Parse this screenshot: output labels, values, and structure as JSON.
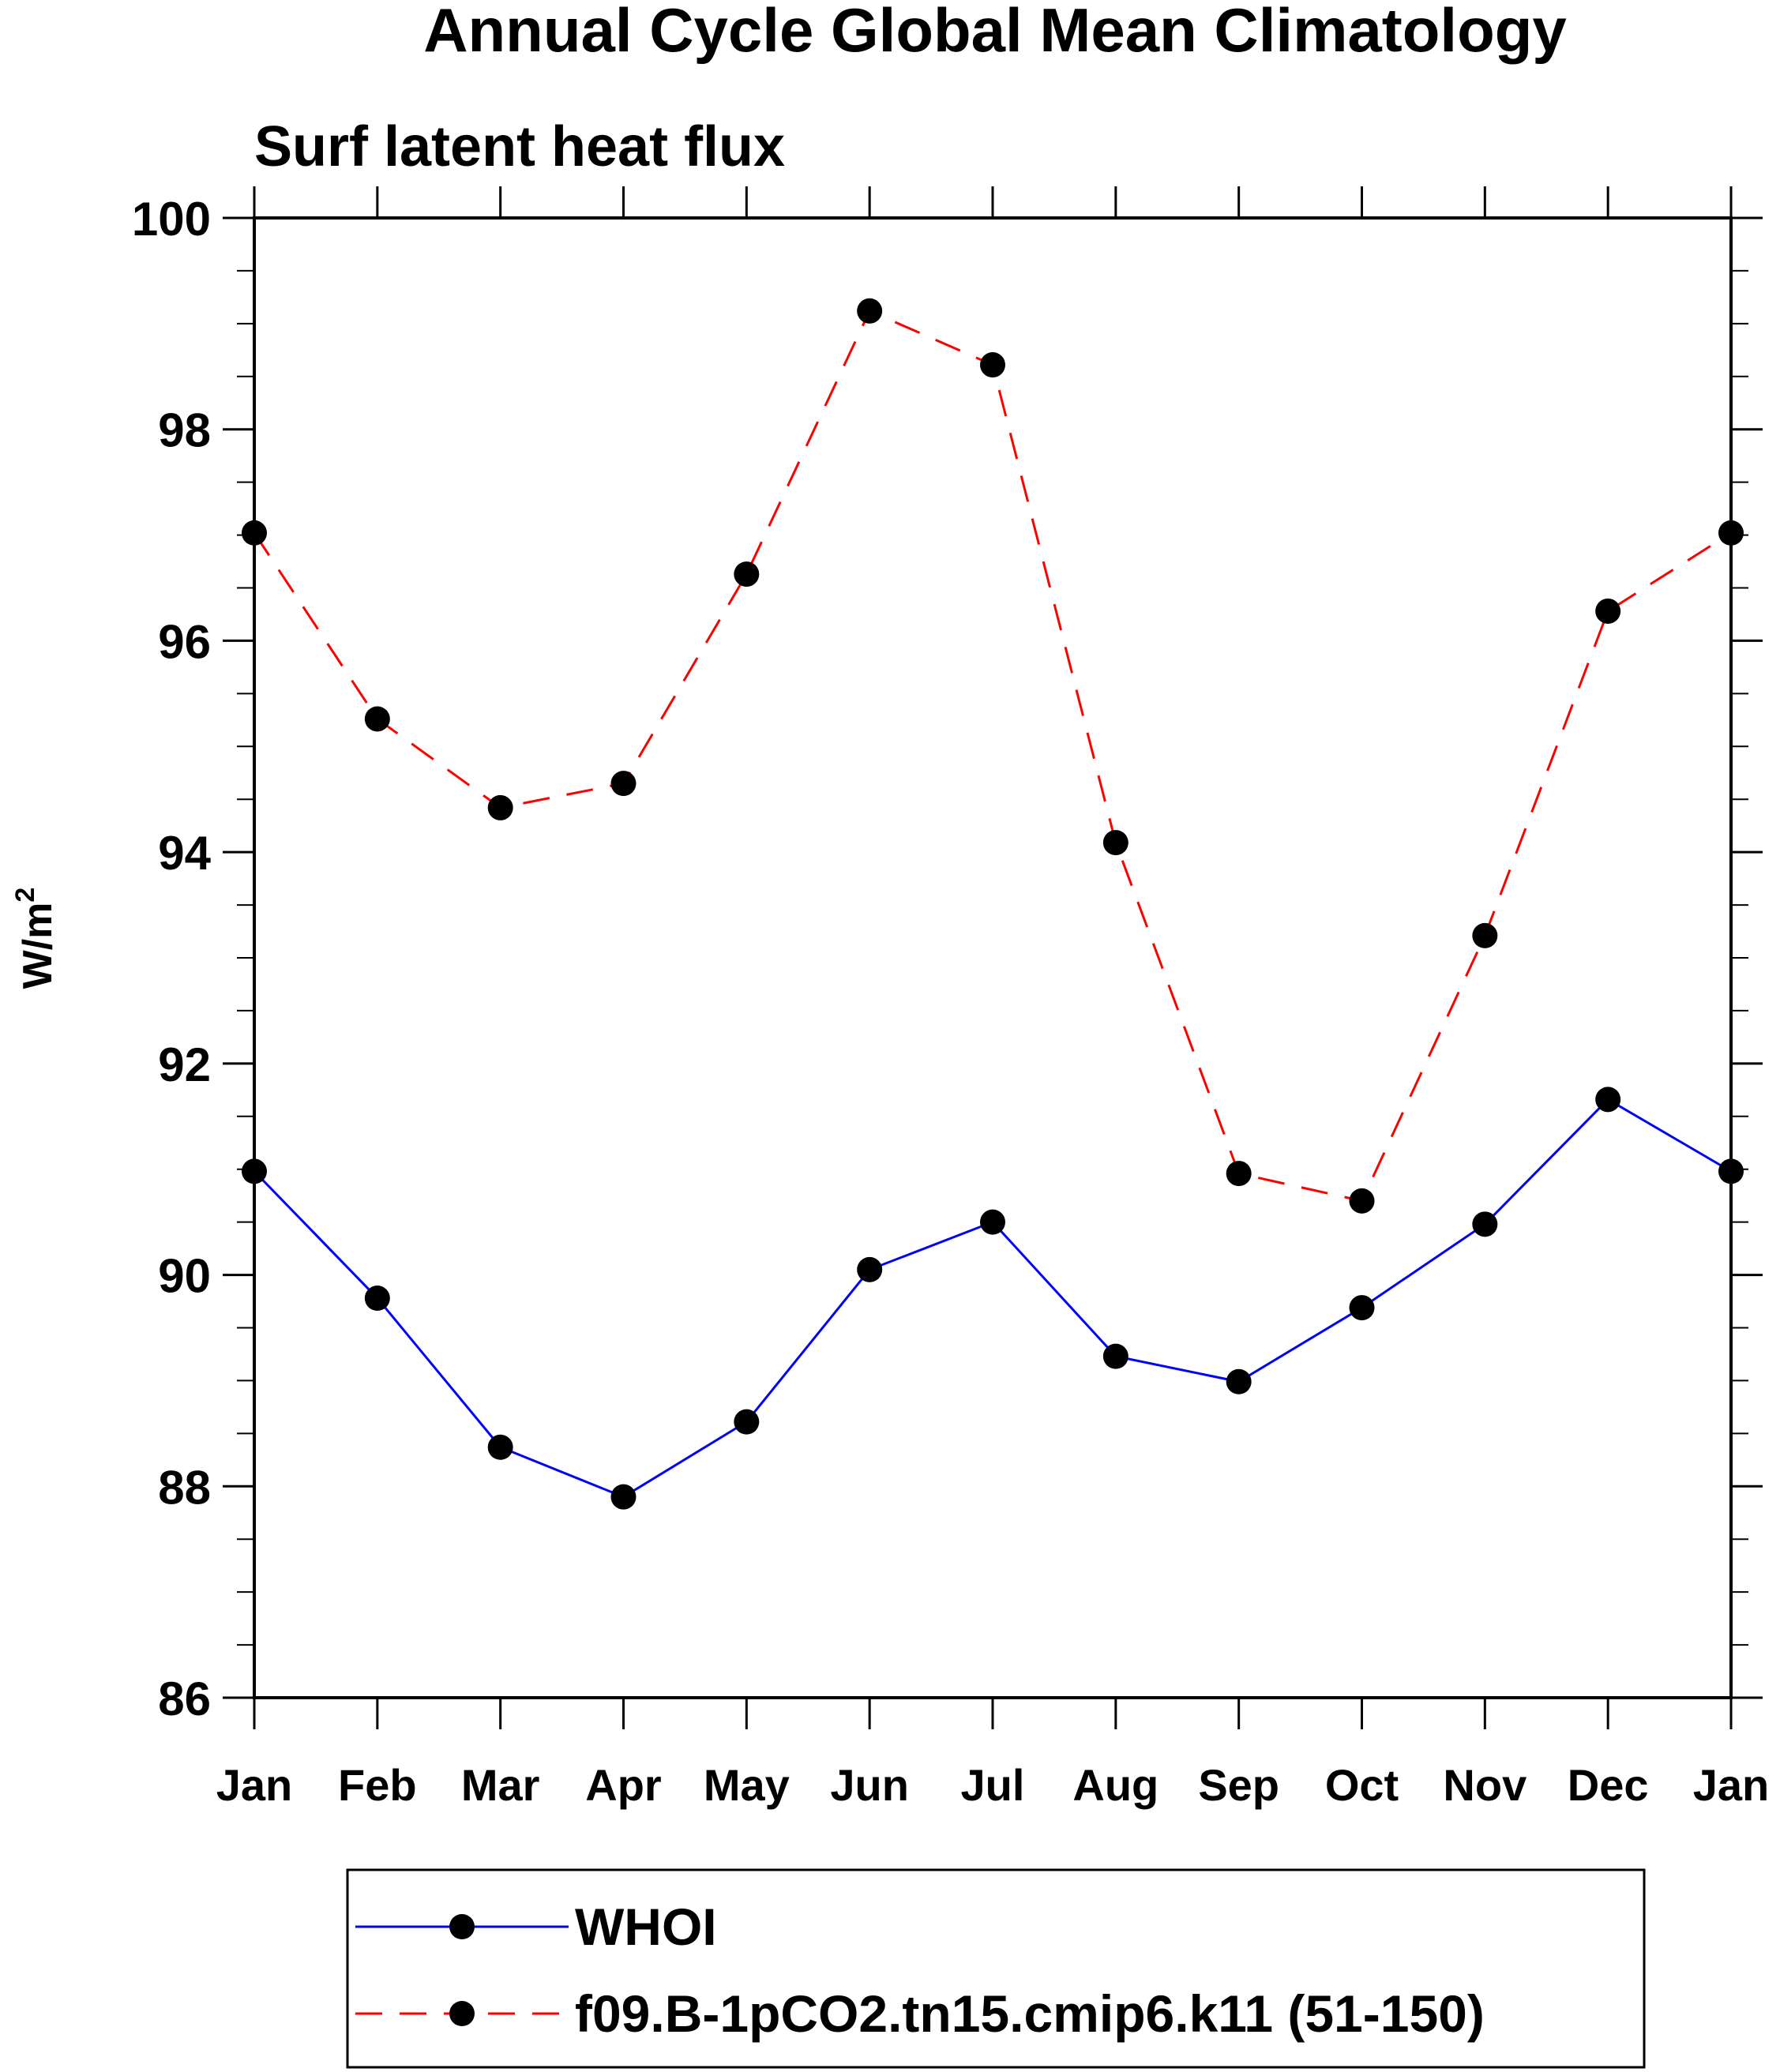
{
  "chart_data": {
    "type": "line",
    "title": "Annual Cycle Global Mean Climatology",
    "subtitle": "Surf latent heat flux",
    "ylabel_base": "W/m",
    "ylabel_sup": "2",
    "xlabel": "",
    "categories": [
      "Jan",
      "Feb",
      "Mar",
      "Apr",
      "May",
      "Jun",
      "Jul",
      "Aug",
      "Sep",
      "Oct",
      "Nov",
      "Dec",
      "Jan"
    ],
    "ylim": [
      86,
      100
    ],
    "yticks": [
      86,
      88,
      90,
      92,
      94,
      96,
      98,
      100
    ],
    "yminor_step": 0.5,
    "grid": false,
    "legend_position": "bottom",
    "series": [
      {
        "name": "WHOI",
        "color": "#0000ff",
        "line_style": "solid",
        "marker": "filled-circle",
        "values": [
          90.98,
          89.78,
          88.37,
          87.9,
          88.61,
          90.05,
          90.5,
          89.23,
          88.99,
          89.69,
          90.48,
          91.66,
          90.98
        ]
      },
      {
        "name": "f09.B-1pCO2.tn15.cmip6.k11 (51-150)",
        "color": "#ff0000",
        "line_style": "dashed",
        "marker": "filled-circle",
        "values": [
          97.02,
          95.26,
          94.42,
          94.65,
          96.63,
          99.12,
          98.61,
          94.09,
          90.96,
          90.7,
          93.21,
          96.28,
          97.02
        ]
      }
    ]
  }
}
